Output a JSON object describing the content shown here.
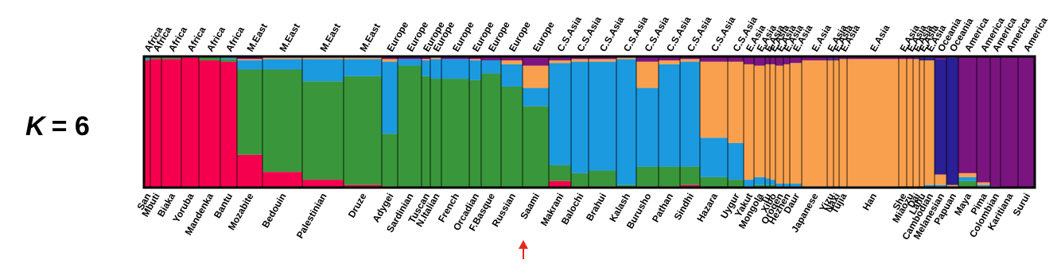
{
  "chart_data": {
    "type": "stacked-bar",
    "title_var": "K",
    "title_rest": "= 6",
    "ylim": [
      0,
      100
    ],
    "categories": [
      "San",
      "Mbuti",
      "Biaka",
      "Yoruba",
      "Mandenka",
      "Bantu",
      "Mozabite",
      "Bedouin",
      "Palestinian",
      "Druze",
      "Adygei",
      "Sardinian",
      "Tuscan",
      "N.Italian",
      "French",
      "Orcadian",
      "F.Basque",
      "Russian",
      "Saami",
      "Makrani",
      "Balochi",
      "Brahui",
      "Kalash",
      "Burusho",
      "Pathan",
      "Sindhi",
      "Hazara",
      "Uygur",
      "Yakut",
      "Mongola",
      "Tu",
      "Xibo",
      "Oroqen",
      "Hezhen",
      "Daur",
      "Japanese",
      "Yizu",
      "Naxi",
      "Tujia",
      "Han",
      "She",
      "Miaozu",
      "Dai",
      "Lahu",
      "Cambodian",
      "Melanesian",
      "Papuan",
      "Maya",
      "Pima",
      "Colombian",
      "Karitiana",
      "Surui"
    ],
    "regions": [
      "Africa",
      "Africa",
      "Africa",
      "Africa",
      "Africa",
      "Africa",
      "M.East",
      "M.East",
      "M.East",
      "M.East",
      "Europe",
      "Europe",
      "Europe",
      "Europe",
      "Europe",
      "Europe",
      "Europe",
      "Europe",
      "Europe",
      "C.S.Asia",
      "C.S.Asia",
      "C.S.Asia",
      "C.S.Asia",
      "C.S.Asia",
      "C.S.Asia",
      "C.S.Asia",
      "C.S.Asia",
      "C.S.Asia",
      "E.Asia",
      "E.Asia",
      "E.Asia",
      "E.Asia",
      "E.Asia",
      "E.Asia",
      "E.Asia",
      "E.Asia",
      "E.Asia",
      "E.Asia",
      "E.Asia",
      "E.Asia",
      "E.Asia",
      "E.Asia",
      "E.Asia",
      "E.Asia",
      "E.Asia",
      "Oceania",
      "Oceania",
      "America",
      "America",
      "America",
      "America",
      "America"
    ],
    "sample_sizes": [
      8,
      14,
      25,
      22,
      27,
      21,
      32,
      50,
      52,
      48,
      20,
      30,
      11,
      14,
      35,
      15,
      25,
      27,
      33,
      28,
      22,
      35,
      25,
      28,
      27,
      25,
      35,
      20,
      13,
      14,
      6,
      7,
      10,
      8,
      15,
      32,
      8,
      7,
      10,
      65,
      10,
      8,
      8,
      6,
      13,
      15,
      15,
      23,
      17,
      13,
      22,
      21
    ],
    "series": [
      {
        "color": "#f5004f",
        "values": [
          97,
          98,
          98,
          99,
          97,
          96,
          25,
          12,
          6,
          2,
          1,
          0,
          0,
          0,
          0,
          0,
          0,
          0,
          0,
          5,
          1,
          1,
          0,
          1,
          1,
          2,
          0,
          0,
          0,
          0,
          0,
          0,
          0,
          0,
          0,
          0,
          0,
          0,
          0,
          0,
          0,
          0,
          0,
          0,
          0,
          0,
          0,
          0,
          0,
          0,
          0,
          0
        ]
      },
      {
        "color": "#3a963a",
        "values": [
          1,
          1,
          1,
          1,
          2,
          2,
          65,
          78,
          75,
          83,
          40,
          93,
          85,
          83,
          83,
          82,
          87,
          77,
          62,
          12,
          10,
          12,
          2,
          15,
          15,
          14,
          8,
          6,
          1,
          2,
          2,
          2,
          1,
          1,
          1,
          0,
          0,
          0,
          0,
          0,
          0,
          0,
          0,
          0,
          0,
          1,
          0,
          5,
          1,
          0,
          0,
          0
        ]
      },
      {
        "color": "#1b9ae0",
        "values": [
          1,
          0,
          0,
          0,
          0,
          1,
          7,
          8,
          17,
          13,
          55,
          5,
          12,
          15,
          15,
          15,
          10,
          17,
          14,
          78,
          85,
          83,
          96,
          60,
          78,
          80,
          30,
          28,
          5,
          6,
          5,
          4,
          2,
          2,
          2,
          1,
          1,
          1,
          1,
          1,
          0,
          0,
          0,
          0,
          2,
          1,
          0,
          3,
          1,
          0,
          0,
          0
        ]
      },
      {
        "color": "#f9a04e",
        "values": [
          0,
          0,
          0,
          0,
          0,
          0,
          1,
          1,
          1,
          1,
          2,
          0,
          1,
          1,
          0,
          1,
          0,
          3,
          17,
          2,
          2,
          2,
          1,
          20,
          3,
          2,
          58,
          62,
          88,
          85,
          87,
          88,
          90,
          91,
          92,
          96,
          96,
          96,
          97,
          97,
          98,
          98,
          98,
          97,
          95,
          8,
          2,
          3,
          2,
          1,
          0,
          0
        ]
      },
      {
        "color": "#2a1f94",
        "values": [
          0,
          0,
          0,
          0,
          0,
          0,
          0,
          0,
          0,
          0,
          0,
          0,
          0,
          0,
          0,
          0,
          0,
          0,
          0,
          0,
          0,
          0,
          0,
          0,
          0,
          0,
          0,
          0,
          0,
          0,
          0,
          0,
          0,
          0,
          0,
          0,
          1,
          1,
          0,
          0,
          0,
          0,
          1,
          2,
          2,
          88,
          97,
          0,
          0,
          0,
          0,
          0
        ]
      },
      {
        "color": "#7a1580",
        "values": [
          1,
          1,
          1,
          0,
          1,
          1,
          2,
          1,
          1,
          1,
          2,
          2,
          2,
          1,
          2,
          2,
          3,
          3,
          7,
          3,
          2,
          2,
          1,
          4,
          3,
          2,
          4,
          4,
          6,
          7,
          6,
          6,
          7,
          6,
          5,
          3,
          2,
          2,
          2,
          2,
          2,
          2,
          1,
          1,
          1,
          2,
          1,
          89,
          96,
          99,
          100,
          100
        ]
      }
    ]
  }
}
